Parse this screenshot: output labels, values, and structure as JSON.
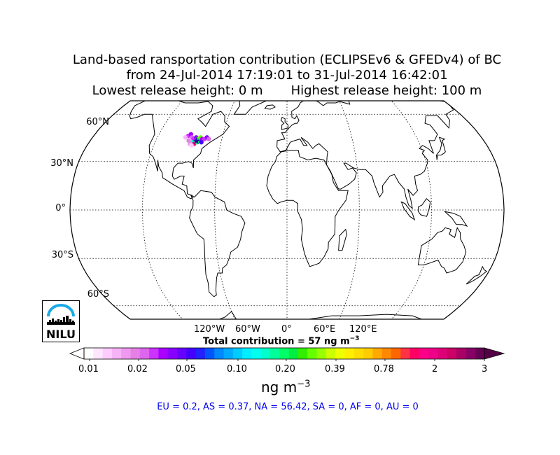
{
  "title": {
    "line1": "Land-based ransportation contribution (ECLIPSEv6 & GFEDv4) of BC",
    "line2": "from 24-Jul-2014 17:19:01 to 31-Jul-2014 16:42:01",
    "line3": "Lowest release height: 0 m       Highest release height: 100 m"
  },
  "map": {
    "projection": "robinson",
    "lat_labels": [
      "60°N",
      "30°N",
      "0°",
      "30°S",
      "60°S"
    ],
    "lon_labels": [
      "120°W",
      "60°W",
      "0°",
      "60°E",
      "120°E"
    ],
    "plume_region": "eastern North America"
  },
  "total_contribution": "Total contribution = 57 ng m",
  "total_contribution_exp": "−3",
  "colorbar": {
    "tick_labels": [
      "0.01",
      "0.02",
      "0.05",
      "0.10",
      "0.20",
      "0.39",
      "0.78",
      "2",
      "3"
    ],
    "units": "ng m",
    "units_exp": "−3",
    "colors": [
      "#ffffff",
      "#ffe6ff",
      "#ffccff",
      "#f7b3f7",
      "#f099f0",
      "#e680e6",
      "#dd66ee",
      "#cc33ff",
      "#aa00ff",
      "#8800ff",
      "#6600ff",
      "#4400ff",
      "#2222ff",
      "#0055ff",
      "#0088ff",
      "#00aaff",
      "#00ccff",
      "#00eeff",
      "#00ffee",
      "#00ffcc",
      "#00ff99",
      "#00ff66",
      "#00ee44",
      "#33ee00",
      "#66ff00",
      "#99ff00",
      "#ccff00",
      "#eeff00",
      "#ffee00",
      "#ffdd00",
      "#ffcc00",
      "#ffaa00",
      "#ff8800",
      "#ff6600",
      "#ff3344",
      "#ff0066",
      "#ff0088",
      "#ee0088",
      "#dd0077",
      "#cc0066",
      "#aa0066",
      "#880066",
      "#660055"
    ]
  },
  "regions": "EU = 0.2,  AS = 0.37,  NA = 56.42,  SA = 0,  AF = 0,  AU = 0",
  "logo": {
    "text": "NILU",
    "icon": "nilu-logo-icon"
  }
}
